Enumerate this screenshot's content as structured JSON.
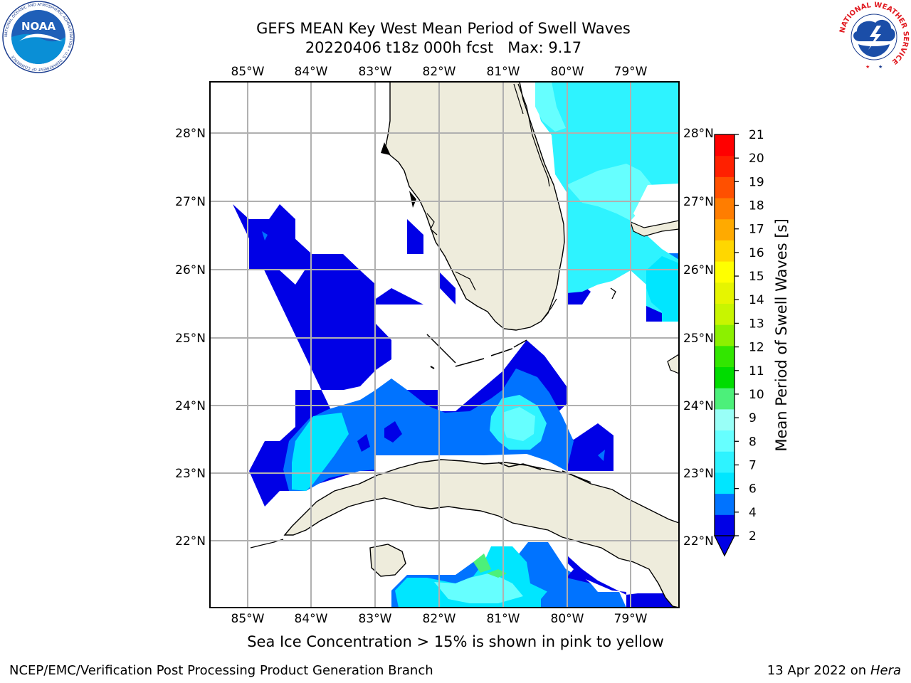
{
  "title": {
    "line1": "GEFS MEAN Key West Mean Period of Swell Waves",
    "line2": "20220406 t18z 000h fcst   Max: 9.17"
  },
  "map": {
    "lon_ticks": [
      "85°W",
      "84°W",
      "83°W",
      "82°W",
      "81°W",
      "80°W",
      "79°W"
    ],
    "lat_ticks": [
      "28°N",
      "27°N",
      "26°N",
      "25°N",
      "24°N",
      "23°N",
      "22°N"
    ],
    "land_color": "#eeecdc",
    "grid_color": "#b0b0b0"
  },
  "colorbar": {
    "label": "Mean Period of Swell Waves [s]",
    "ticks": [
      "2",
      "4",
      "6",
      "7",
      "8",
      "9",
      "10",
      "11",
      "12",
      "13",
      "14",
      "15",
      "16",
      "17",
      "18",
      "19",
      "20",
      "21"
    ],
    "colors": [
      "#0000e6",
      "#0073ff",
      "#00e6ff",
      "#2ef3ff",
      "#66ffff",
      "#99fff7",
      "#4cf07a",
      "#00dc00",
      "#32e600",
      "#8cf000",
      "#c8f500",
      "#e6f500",
      "#ffff00",
      "#ffd700",
      "#ffaa00",
      "#ff7d00",
      "#ff5000",
      "#ff2000",
      "#ff0000"
    ]
  },
  "caption": "Sea Ice Concentration > 15% is shown in pink to yellow",
  "footer": {
    "left": "NCEP/EMC/Verification Post Processing Product Generation Branch",
    "right_prefix": "13 Apr 2022 on ",
    "right_host": "Hera"
  },
  "logos": {
    "noaa_text": "NOAA",
    "noaa_ring": "NATIONAL OCEANIC AND ATMOSPHERIC ADMINISTRATION • U.S. DEPARTMENT OF COMMERCE",
    "nws_ring": "NATIONAL WEATHER SERVICE"
  }
}
